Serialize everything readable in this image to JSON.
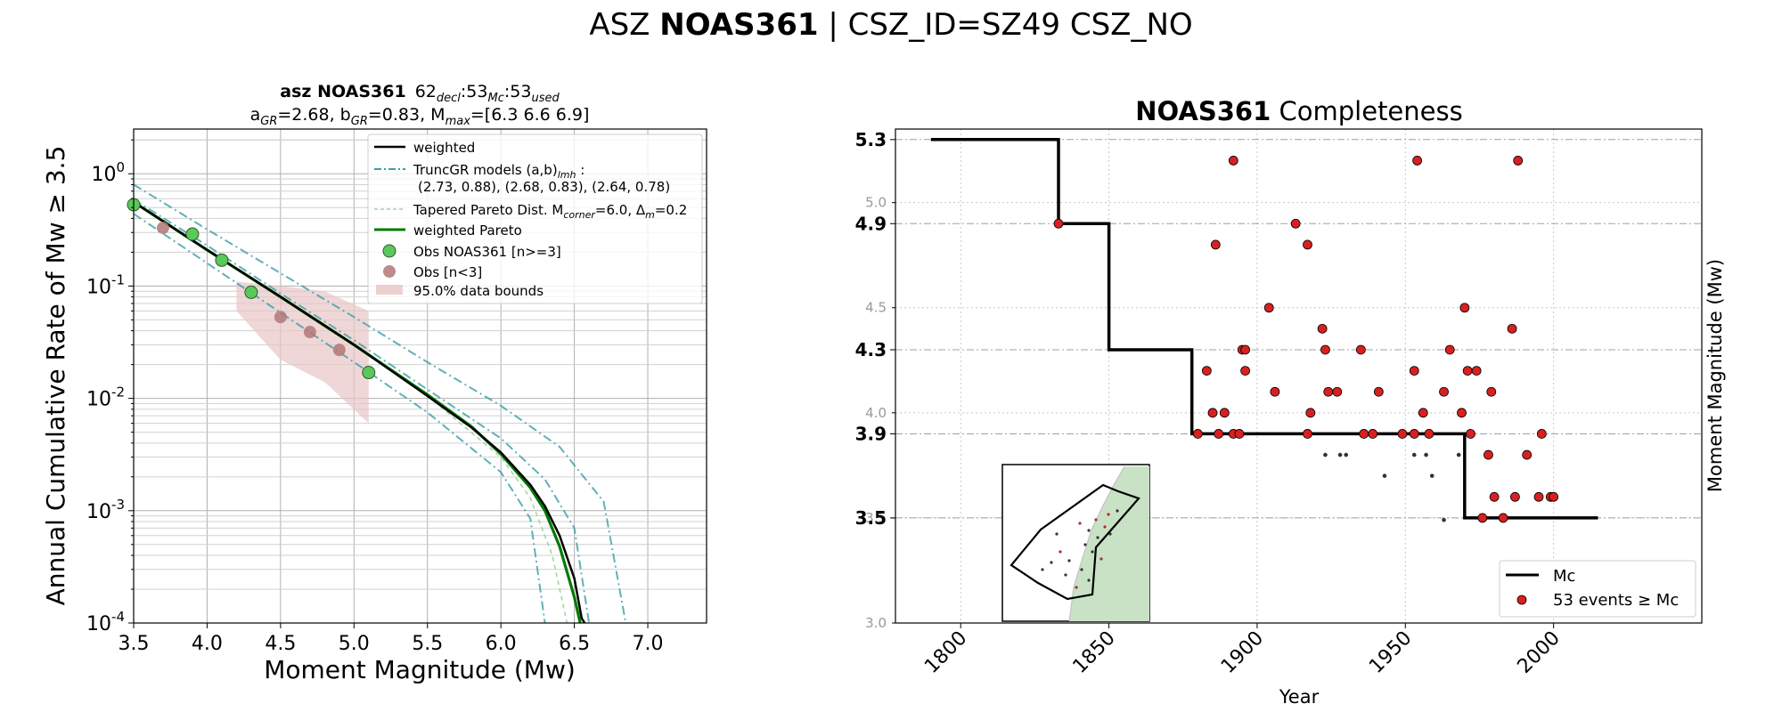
{
  "figure": {
    "suptitle": {
      "pre": "ASZ ",
      "bold": "NOAS361",
      "post": " | CSZ_ID=SZ49 CSZ_NO"
    }
  },
  "left": {
    "title_line1": {
      "bold": "asz NOAS361",
      "n_decl": "62",
      "sub_decl": "decl",
      "n_mc": "53",
      "sub_mc": "Mc",
      "n_used": "53",
      "sub_used": "used"
    },
    "title_line2": {
      "a": "a",
      "a_sub": "GR",
      "a_val": "=2.68,  b",
      "b_sub": "GR",
      "b_val": "=0.83, M",
      "m_sub": "max",
      "m_val": "=[6.3 6.6 6.9]"
    },
    "xlabel": "Moment Magnitude (Mw)",
    "ylabel": "Annual Cumulative Rate of Mw  ≥  3.5",
    "legend": {
      "weighted": "weighted",
      "trunc_line1": "TruncGR models (a,b)",
      "trunc_sub": "lmh",
      "trunc_colon": " :",
      "trunc_line2": "(2.73, 0.88), (2.68, 0.83), (2.64, 0.78)",
      "tapered_pre": "Tapered Pareto Dist. M",
      "tapered_sub": "corner",
      "tapered_mid": "=6.0, Δ",
      "tapered_sub2": "m",
      "tapered_post": "=0.2",
      "wpareto": "weighted Pareto",
      "obs": "Obs NOAS361 [n>=3]",
      "obs_small": "Obs [n<3]",
      "bounds": "95.0% data bounds"
    }
  },
  "right": {
    "title_bold": "NOAS361",
    "title_rest": " Completeness",
    "xlabel": "Year",
    "ylabel": "Moment Magnitude (Mw)",
    "legend": {
      "mc": "Mc",
      "events": "53 events  ≥  Mc"
    }
  },
  "colors": {
    "weighted": "#000000",
    "truncgr": "#3a9ea5",
    "tapered": "#9fd4a0",
    "pareto": "#007a00",
    "obs": "#5ac85a",
    "obs_small": "#b07878",
    "bounds": "#e8c6c6",
    "events": "#d92020",
    "inset_land": "#c9e2c6"
  },
  "chart_data": [
    {
      "type": "line",
      "title": "asz NOAS361 62decl:53Mc:53used",
      "xlabel": "Moment Magnitude (Mw)",
      "ylabel": "Annual Cumulative Rate of Mw ≥ 3.5",
      "xlim": [
        3.5,
        7.4
      ],
      "ylim": [
        0.0001,
        2.5
      ],
      "yscale": "log",
      "xticks": [
        3.5,
        4.0,
        4.5,
        5.0,
        5.5,
        6.0,
        6.5,
        7.0
      ],
      "grid": true,
      "legend_position": "top-right",
      "series": [
        {
          "name": "weighted",
          "x": [
            3.5,
            4.0,
            4.5,
            5.0,
            5.5,
            5.8,
            6.0,
            6.2,
            6.3,
            6.4,
            6.5,
            6.55,
            6.57
          ],
          "y": [
            0.56,
            0.21,
            0.08,
            0.03,
            0.0105,
            0.0055,
            0.0033,
            0.0017,
            0.0011,
            0.0006,
            0.00025,
            0.00011,
            0.0001
          ]
        },
        {
          "name": "weighted Pareto",
          "x": [
            3.5,
            4.0,
            4.5,
            5.0,
            5.5,
            5.8,
            6.0,
            6.2,
            6.3,
            6.4,
            6.5,
            6.54
          ],
          "y": [
            0.56,
            0.21,
            0.08,
            0.03,
            0.0108,
            0.0056,
            0.0032,
            0.0016,
            0.001,
            0.00048,
            0.00017,
            0.0001
          ]
        },
        {
          "name": "TruncGR (2.73, 0.88) Mmax 6.3",
          "x": [
            3.5,
            4.0,
            4.5,
            5.0,
            5.5,
            6.0,
            6.2,
            6.3
          ],
          "y": [
            0.44,
            0.16,
            0.058,
            0.021,
            0.0075,
            0.0022,
            0.00085,
            0.0001
          ]
        },
        {
          "name": "TruncGR (2.68, 0.83) Mmax 6.6",
          "x": [
            3.5,
            4.0,
            4.5,
            5.0,
            5.5,
            6.0,
            6.3,
            6.5,
            6.6
          ],
          "y": [
            0.59,
            0.23,
            0.086,
            0.033,
            0.012,
            0.0044,
            0.0019,
            0.0007,
            0.0001
          ]
        },
        {
          "name": "TruncGR (2.64, 0.78) Mmax 6.9",
          "x": [
            3.5,
            4.0,
            4.5,
            5.0,
            5.5,
            6.0,
            6.4,
            6.7,
            6.85
          ],
          "y": [
            0.8,
            0.32,
            0.13,
            0.053,
            0.021,
            0.0086,
            0.0037,
            0.0012,
            0.0001
          ]
        },
        {
          "name": "Tapered Pareto",
          "x": [
            3.5,
            4.0,
            4.5,
            5.0,
            5.5,
            6.0,
            6.2,
            6.35,
            6.45
          ],
          "y": [
            0.56,
            0.21,
            0.08,
            0.03,
            0.0105,
            0.003,
            0.0013,
            0.0004,
            0.0001
          ]
        },
        {
          "name": "Obs NOAS361 [n>=3]",
          "x": [
            3.5,
            3.9,
            4.1,
            4.3,
            5.1
          ],
          "y": [
            0.53,
            0.29,
            0.17,
            0.088,
            0.017
          ]
        },
        {
          "name": "Obs [n<3]",
          "x": [
            3.7,
            4.5,
            4.7,
            4.9
          ],
          "y": [
            0.33,
            0.053,
            0.039,
            0.027
          ]
        },
        {
          "name": "95.0% data bounds",
          "x": [
            4.2,
            4.5,
            4.8,
            5.1,
            5.1,
            4.8,
            4.5,
            4.2
          ],
          "y": [
            0.11,
            0.1,
            0.09,
            0.06,
            0.006,
            0.014,
            0.022,
            0.06
          ]
        }
      ]
    },
    {
      "type": "scatter",
      "title": "NOAS361 Completeness",
      "xlabel": "Year",
      "ylabel": "Moment Magnitude (Mw)",
      "xlim": [
        1778,
        2050
      ],
      "ylim": [
        3.0,
        5.35
      ],
      "xticks": [
        1800,
        1850,
        1900,
        1950,
        2000
      ],
      "yticks_minor": [
        3.0,
        3.5,
        4.0,
        4.5,
        5.0
      ],
      "yticks_mc": [
        3.5,
        3.9,
        4.3,
        4.9,
        5.3
      ],
      "grid": true,
      "legend_position": "bottom-right",
      "series": [
        {
          "name": "Mc",
          "x": [
            1790,
            1833,
            1833,
            1850,
            1850,
            1878,
            1878,
            1970,
            1970,
            2015
          ],
          "y": [
            5.3,
            5.3,
            4.9,
            4.9,
            4.3,
            4.3,
            3.9,
            3.9,
            3.5,
            3.5
          ]
        },
        {
          "name": "53 events ≥ Mc",
          "x": [
            1833,
            1880,
            1883,
            1885,
            1886,
            1887,
            1889,
            1892,
            1892,
            1894,
            1895,
            1896,
            1896,
            1904,
            1906,
            1913,
            1917,
            1917,
            1918,
            1922,
            1923,
            1924,
            1927,
            1935,
            1936,
            1939,
            1941,
            1949,
            1953,
            1953,
            1954,
            1956,
            1958,
            1963,
            1965,
            1969,
            1970,
            1971,
            1972,
            1974,
            1976,
            1978,
            1979,
            1980,
            1983,
            1986,
            1987,
            1988,
            1991,
            1995,
            1996,
            1999,
            2000
          ],
          "y": [
            4.9,
            3.9,
            4.2,
            4.0,
            4.8,
            3.9,
            4.0,
            5.2,
            3.9,
            3.9,
            4.3,
            4.2,
            4.3,
            4.5,
            4.1,
            4.9,
            4.8,
            3.9,
            4.0,
            4.4,
            4.3,
            4.1,
            4.1,
            4.3,
            3.9,
            3.9,
            4.1,
            3.9,
            4.2,
            3.9,
            5.2,
            4.0,
            3.9,
            4.1,
            4.3,
            4.0,
            4.5,
            4.2,
            3.9,
            4.2,
            3.5,
            3.8,
            4.1,
            3.6,
            3.5,
            4.4,
            3.6,
            5.2,
            3.8,
            3.6,
            3.9,
            3.6,
            3.6
          ]
        },
        {
          "name": "events below Mc",
          "x": [
            1923,
            1928,
            1930,
            1943,
            1953,
            1957,
            1959,
            1963,
            1968
          ],
          "y": [
            3.8,
            3.8,
            3.8,
            3.7,
            3.8,
            3.8,
            3.7,
            3.49,
            3.8
          ]
        }
      ]
    }
  ]
}
